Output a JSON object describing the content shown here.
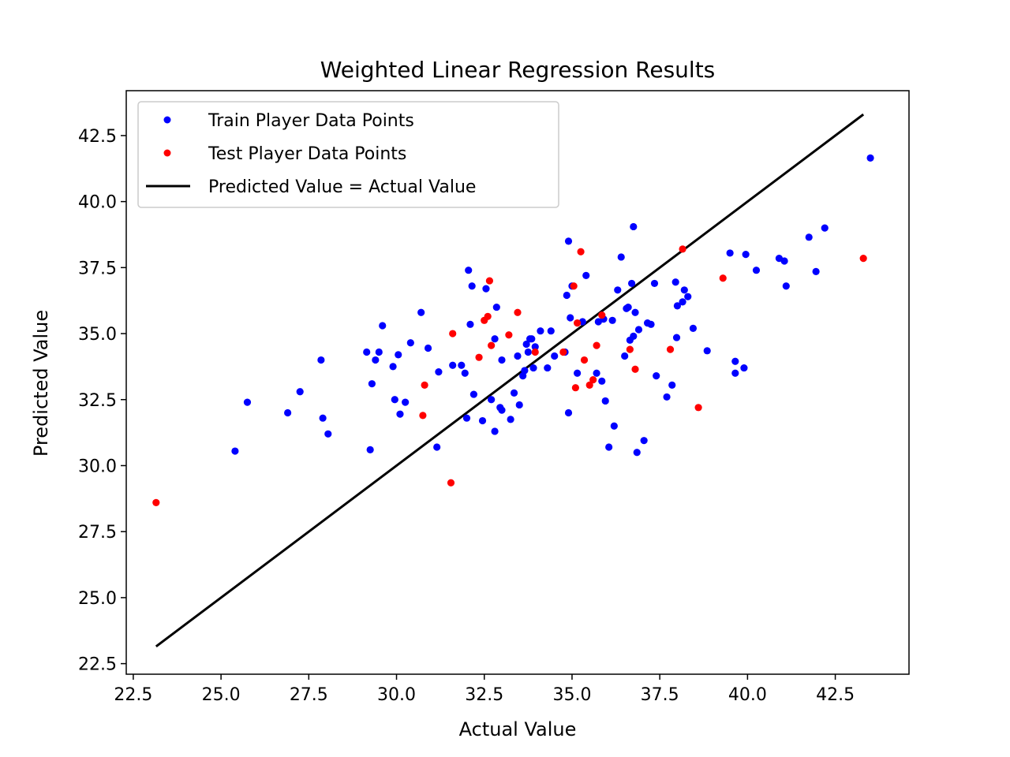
{
  "chart_data": {
    "type": "scatter",
    "title": "Weighted Linear Regression Results",
    "xlabel": "Actual Value",
    "ylabel": "Predicted Value",
    "xlim": [
      22.3,
      44.6
    ],
    "ylim": [
      22.1,
      44.2
    ],
    "xticks": [
      22.5,
      25.0,
      27.5,
      30.0,
      32.5,
      35.0,
      37.5,
      40.0,
      42.5
    ],
    "xtick_labels": [
      "22.5",
      "25.0",
      "27.5",
      "30.0",
      "32.5",
      "35.0",
      "37.5",
      "40.0",
      "42.5"
    ],
    "yticks": [
      22.5,
      25.0,
      27.5,
      30.0,
      32.5,
      35.0,
      37.5,
      40.0,
      42.5
    ],
    "ytick_labels": [
      "22.5",
      "25.0",
      "27.5",
      "30.0",
      "32.5",
      "35.0",
      "37.5",
      "40.0",
      "42.5"
    ],
    "grid": false,
    "legend_position": "top-left",
    "series": [
      {
        "name": "Train Player Data Points",
        "kind": "scatter",
        "color": "#0000ff",
        "x": [
          25.4,
          25.75,
          26.9,
          27.25,
          27.85,
          27.9,
          28.05,
          29.15,
          29.25,
          29.3,
          29.4,
          29.5,
          29.6,
          29.9,
          29.95,
          30.05,
          30.1,
          30.25,
          30.4,
          30.7,
          30.9,
          31.15,
          31.2,
          31.6,
          31.85,
          31.95,
          32.0,
          32.05,
          32.1,
          32.15,
          32.2,
          32.45,
          32.55,
          32.7,
          32.8,
          32.8,
          32.85,
          32.95,
          33.0,
          33.0,
          33.25,
          33.35,
          33.45,
          33.5,
          33.6,
          33.65,
          33.7,
          33.75,
          33.8,
          33.85,
          33.9,
          33.95,
          34.1,
          34.3,
          34.4,
          34.5,
          34.8,
          34.85,
          34.9,
          34.9,
          34.95,
          35.0,
          35.15,
          35.3,
          35.4,
          35.7,
          35.75,
          35.85,
          35.9,
          35.95,
          36.05,
          36.15,
          36.2,
          36.3,
          36.4,
          36.5,
          36.55,
          36.6,
          36.65,
          36.7,
          36.75,
          36.75,
          36.8,
          36.85,
          36.9,
          37.05,
          37.15,
          37.25,
          37.35,
          37.4,
          37.7,
          37.85,
          37.95,
          37.98,
          38.0,
          38.15,
          38.2,
          38.3,
          38.45,
          38.85,
          39.5,
          39.65,
          39.65,
          39.9,
          39.95,
          40.25,
          40.9,
          41.05,
          41.1,
          41.75,
          41.95,
          42.2,
          43.5
        ],
        "y": [
          30.55,
          32.4,
          32.0,
          32.8,
          34.0,
          31.8,
          31.2,
          34.3,
          30.6,
          33.1,
          34.0,
          34.3,
          35.3,
          33.75,
          32.5,
          34.2,
          31.95,
          32.4,
          34.65,
          35.8,
          34.45,
          30.7,
          33.55,
          33.8,
          33.8,
          33.5,
          31.8,
          37.4,
          35.35,
          36.8,
          32.7,
          31.7,
          36.7,
          32.5,
          31.3,
          34.8,
          36.0,
          32.2,
          34.0,
          32.1,
          31.75,
          32.75,
          34.15,
          32.3,
          33.4,
          33.6,
          34.6,
          34.3,
          34.8,
          34.8,
          33.7,
          34.5,
          35.1,
          33.7,
          35.1,
          34.15,
          34.3,
          36.45,
          32.0,
          38.5,
          35.6,
          36.8,
          33.5,
          35.45,
          37.2,
          33.5,
          35.45,
          33.2,
          35.55,
          32.45,
          30.7,
          35.5,
          31.5,
          36.65,
          37.9,
          34.15,
          35.95,
          36.0,
          34.75,
          36.9,
          34.9,
          39.05,
          35.8,
          30.5,
          35.15,
          30.95,
          35.4,
          35.35,
          36.9,
          33.4,
          32.6,
          33.05,
          36.95,
          34.85,
          36.05,
          36.2,
          36.65,
          36.4,
          35.2,
          34.35,
          38.05,
          33.95,
          33.5,
          33.7,
          38.0,
          37.4,
          37.85,
          37.75,
          36.8,
          38.65,
          37.35,
          39.0,
          41.65
        ]
      },
      {
        "name": "Test Player Data Points",
        "kind": "scatter",
        "color": "#ff0000",
        "x": [
          23.15,
          30.75,
          30.8,
          31.55,
          31.6,
          32.35,
          32.5,
          32.6,
          32.65,
          32.7,
          33.2,
          33.45,
          33.95,
          34.75,
          35.05,
          35.1,
          35.15,
          35.25,
          35.35,
          35.5,
          35.6,
          35.7,
          35.85,
          36.65,
          36.8,
          37.8,
          38.15,
          38.6,
          39.3,
          43.3
        ],
        "y": [
          28.6,
          31.9,
          33.05,
          29.35,
          35.0,
          34.1,
          35.5,
          35.65,
          37.0,
          34.55,
          34.95,
          35.8,
          34.3,
          34.3,
          36.8,
          32.95,
          35.4,
          38.1,
          34.0,
          33.05,
          33.25,
          34.55,
          35.7,
          34.4,
          33.65,
          34.4,
          38.2,
          32.2,
          37.1,
          37.85
        ]
      },
      {
        "name": "Predicted Value = Actual Value",
        "kind": "line",
        "color": "#000000",
        "x": [
          23.15,
          43.3
        ],
        "y": [
          23.15,
          43.3
        ]
      }
    ]
  }
}
